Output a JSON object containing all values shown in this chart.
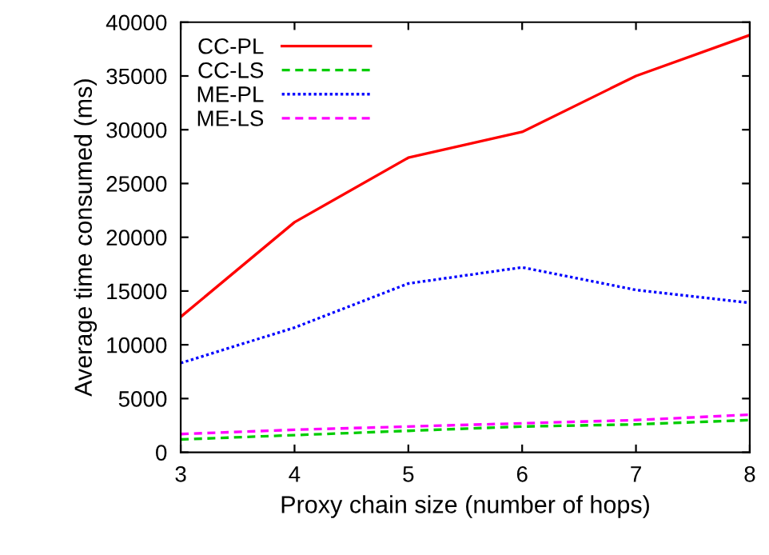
{
  "chart_data": {
    "type": "line",
    "xlabel": "Proxy chain size (number of hops)",
    "ylabel": "Average time consumed (ms)",
    "x": [
      3,
      4,
      5,
      6,
      7,
      8
    ],
    "xlim": [
      3,
      8
    ],
    "xticks": [
      3,
      4,
      5,
      6,
      7,
      8
    ],
    "ylim": [
      0,
      40000
    ],
    "yticks": [
      0,
      5000,
      10000,
      15000,
      20000,
      25000,
      30000,
      35000,
      40000
    ],
    "grid": false,
    "legend": "top left",
    "marker": "none",
    "series": [
      {
        "name": "CC-PL",
        "color": "#ff0000",
        "line_style": "solid",
        "values": [
          12600,
          21400,
          27400,
          29800,
          35000,
          38800
        ]
      },
      {
        "name": "CC-LS",
        "color": "#00cc00",
        "line_style": "dashed",
        "values": [
          1200,
          1600,
          2000,
          2400,
          2600,
          3000
        ]
      },
      {
        "name": "ME-PL",
        "color": "#0000ff",
        "line_style": "dotted",
        "values": [
          8300,
          11600,
          15700,
          17200,
          15100,
          13900
        ]
      },
      {
        "name": "ME-LS",
        "color": "#ff00ff",
        "line_style": "dashed",
        "values": [
          1700,
          2100,
          2400,
          2700,
          3000,
          3500
        ]
      }
    ]
  }
}
